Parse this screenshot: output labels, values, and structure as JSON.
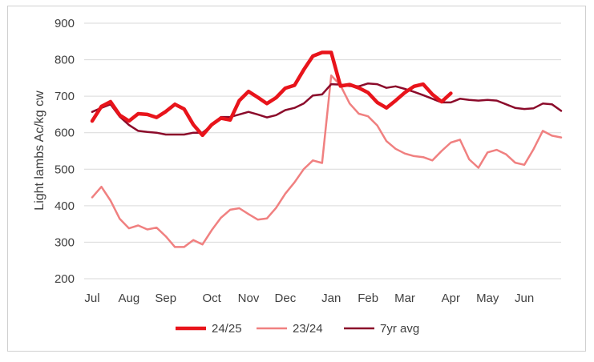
{
  "chart_data": {
    "type": "line",
    "title": "",
    "xlabel": "",
    "ylabel": "Light lambs Ac/kg cw",
    "ylim": [
      200,
      900
    ],
    "yticks": [
      200,
      300,
      400,
      500,
      600,
      700,
      800,
      900
    ],
    "grid": true,
    "legend_position": "bottom",
    "x_month_labels": [
      "Jul",
      "Aug",
      "Sep",
      "Oct",
      "Nov",
      "Dec",
      "Jan",
      "Feb",
      "Mar",
      "Apr",
      "May",
      "Jun"
    ],
    "x_month_label_week": [
      0,
      4,
      8,
      13,
      17,
      21,
      26,
      30,
      34,
      39,
      43,
      47
    ],
    "x_range_weeks": [
      0,
      51
    ],
    "series": [
      {
        "name": "24/25",
        "color": "#e8141b",
        "width": 4.5,
        "values": [
          632,
          672,
          685,
          648,
          632,
          652,
          650,
          642,
          658,
          678,
          665,
          622,
          593,
          622,
          640,
          635,
          688,
          713,
          697,
          680,
          696,
          722,
          730,
          772,
          810,
          820,
          820,
          728,
          732,
          723,
          710,
          683,
          668,
          688,
          710,
          727,
          733,
          705,
          685,
          708
        ]
      },
      {
        "name": "23/24",
        "color": "#f08080",
        "width": 2.5,
        "values": [
          423,
          452,
          414,
          364,
          338,
          346,
          335,
          340,
          316,
          287,
          287,
          306,
          294,
          333,
          367,
          389,
          393,
          377,
          362,
          365,
          394,
          433,
          464,
          500,
          524,
          517,
          757,
          730,
          680,
          652,
          645,
          620,
          577,
          556,
          543,
          536,
          533,
          524,
          550,
          573,
          581,
          527,
          504,
          546,
          553,
          541,
          518,
          512,
          555,
          605,
          592,
          587
        ]
      },
      {
        "name": "7yr avg",
        "color": "#8b0a2a",
        "width": 2.5,
        "values": [
          657,
          668,
          678,
          644,
          621,
          605,
          602,
          600,
          595,
          595,
          595,
          600,
          600,
          620,
          643,
          643,
          650,
          657,
          650,
          642,
          648,
          662,
          668,
          680,
          702,
          705,
          733,
          732,
          728,
          727,
          735,
          733,
          723,
          727,
          720,
          712,
          703,
          693,
          683,
          683,
          693,
          690,
          688,
          690,
          688,
          678,
          668,
          665,
          667,
          680,
          678,
          660
        ]
      }
    ]
  }
}
